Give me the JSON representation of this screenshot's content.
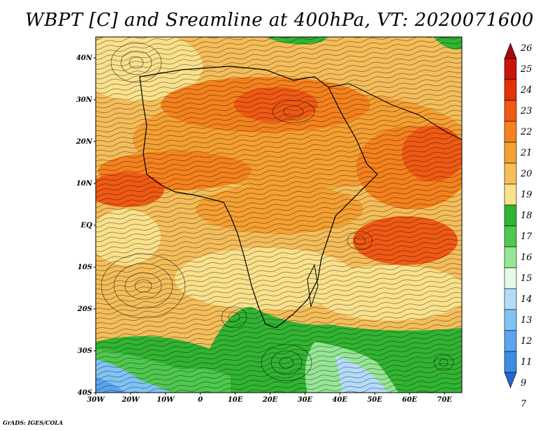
{
  "title": "WBPT [C] and Sreamline at 400hPa, VT: 2020071600",
  "credit": "GrADS: IGES/COLA",
  "map": {
    "lat_labels": [
      "40N",
      "30N",
      "20N",
      "10N",
      "EQ",
      "10S",
      "20S",
      "30S",
      "40S"
    ],
    "lat_values": [
      40,
      30,
      20,
      10,
      0,
      -10,
      -20,
      -30,
      -40
    ],
    "lon_labels": [
      "30W",
      "20W",
      "10W",
      "0",
      "10E",
      "20E",
      "30E",
      "40E",
      "50E",
      "60E",
      "70E"
    ],
    "lon_values": [
      -30,
      -20,
      -10,
      0,
      10,
      20,
      30,
      40,
      50,
      60,
      70
    ],
    "lon_range": [
      -30,
      75
    ],
    "lat_range": [
      -40,
      45
    ]
  },
  "colorbar": {
    "labels": [
      "26",
      "25",
      "24",
      "23",
      "22",
      "21",
      "20",
      "19",
      "18",
      "17",
      "16",
      "15",
      "14",
      "13",
      "12",
      "11",
      "9",
      "7"
    ],
    "colors": [
      "#a50a0a",
      "#c8140a",
      "#e1320a",
      "#f05a14",
      "#f5821e",
      "#f5a032",
      "#f5be5a",
      "#fae18c",
      "#32b432",
      "#50c850",
      "#96e696",
      "#e6fae6",
      "#b4dcfa",
      "#82c3f5",
      "#5aa5f0",
      "#3c8ce6",
      "#2864d2"
    ]
  }
}
